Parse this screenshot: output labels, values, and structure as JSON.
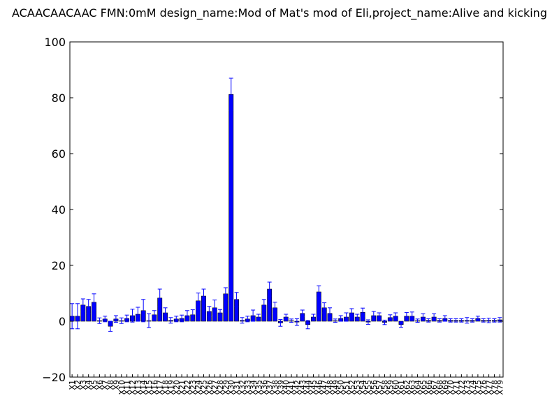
{
  "chart_data": {
    "type": "bar",
    "title": "ACAACAACAAC  FMN:0mM  design_name:Mod of Mat's mod of Eli,project_name:Alive and kicking",
    "xlabel": "",
    "ylabel": "",
    "ylim": [
      -20,
      100
    ],
    "yticks": [
      "−20",
      "0",
      "20",
      "40",
      "60",
      "80",
      "100"
    ],
    "grid": false,
    "legend": "none",
    "bar_color": "#0000ff",
    "error_color": "#0000ff",
    "categories": [
      "X1",
      "X2",
      "X3",
      "X4",
      "X5",
      "X6",
      "X7",
      "X8",
      "X9",
      "X10",
      "X11",
      "X12",
      "X13",
      "X14",
      "X15",
      "X16",
      "X17",
      "X18",
      "X19",
      "X20",
      "X21",
      "X22",
      "X23",
      "X24",
      "X25",
      "X26",
      "X27",
      "X28",
      "X29",
      "X30",
      "X31",
      "X32",
      "X33",
      "X34",
      "X35",
      "X36",
      "X37",
      "X38",
      "X39",
      "X40",
      "X41",
      "X42",
      "X43",
      "X44",
      "X45",
      "X46",
      "X47",
      "X48",
      "X49",
      "X50",
      "X51",
      "X52",
      "X53",
      "X54",
      "X55",
      "X56",
      "X57",
      "X58",
      "X59",
      "X60",
      "X61",
      "X62",
      "X63",
      "X64",
      "X65",
      "X66",
      "X67",
      "X68",
      "X69",
      "X70",
      "X71",
      "X72",
      "X73",
      "X74",
      "X75",
      "X76",
      "X77",
      "X78",
      "X79"
    ],
    "values": [
      1.8,
      1.8,
      5.8,
      5.3,
      6.8,
      0.2,
      0.8,
      -1.8,
      0.8,
      0.2,
      1.0,
      2.0,
      2.5,
      3.8,
      0.2,
      2.3,
      8.3,
      3.0,
      0.3,
      0.8,
      1.0,
      2.0,
      2.3,
      7.3,
      9.0,
      3.5,
      4.8,
      3.0,
      9.8,
      81.2,
      7.8,
      0.3,
      0.8,
      2.0,
      1.5,
      5.8,
      11.5,
      4.8,
      -0.6,
      1.5,
      0.2,
      -0.3,
      2.8,
      -1.2,
      1.5,
      10.5,
      4.8,
      2.8,
      0.2,
      1.0,
      1.5,
      3.0,
      1.5,
      3.2,
      -0.3,
      2.0,
      2.0,
      -0.4,
      1.3,
      1.8,
      -1.2,
      1.8,
      1.8,
      0.2,
      1.5,
      0.3,
      1.5,
      0.3,
      1.0,
      0.3,
      0.3,
      0.3,
      0.3,
      0.3,
      1.0,
      0.3,
      0.3,
      0.3,
      0.5
    ],
    "errors": [
      4.5,
      4.5,
      2.2,
      2.5,
      3.0,
      1.0,
      1.0,
      1.8,
      1.2,
      1.0,
      1.2,
      2.3,
      2.5,
      4.0,
      2.5,
      1.5,
      3.2,
      1.8,
      1.0,
      1.0,
      1.2,
      1.8,
      1.8,
      2.8,
      2.5,
      1.8,
      2.8,
      1.2,
      2.2,
      5.8,
      2.5,
      1.0,
      1.0,
      2.0,
      1.0,
      2.0,
      2.5,
      2.0,
      1.2,
      1.0,
      0.6,
      1.2,
      1.2,
      1.5,
      1.0,
      2.2,
      1.8,
      2.0,
      0.6,
      1.0,
      1.5,
      1.5,
      1.0,
      1.5,
      0.8,
      1.5,
      1.0,
      0.8,
      1.0,
      1.2,
      1.0,
      1.3,
      1.5,
      0.6,
      1.2,
      0.6,
      1.2,
      0.6,
      1.0,
      0.6,
      0.6,
      0.6,
      1.0,
      0.6,
      0.8,
      0.6,
      0.8,
      0.6,
      0.8
    ]
  }
}
